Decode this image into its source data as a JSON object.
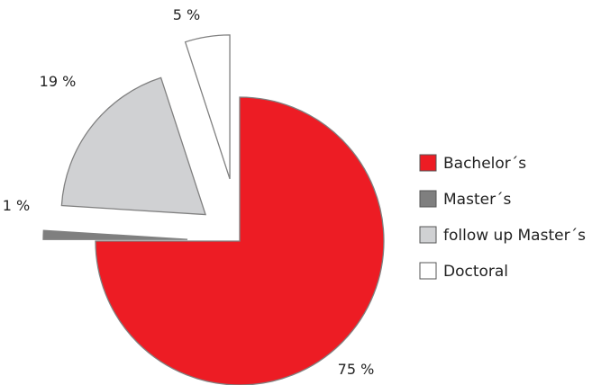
{
  "chart_data": {
    "type": "pie",
    "title": "",
    "legend_position": "right",
    "slices": [
      {
        "label": "Bachelor´s",
        "value": 75,
        "value_label": "75 %",
        "color": "#ed1c24",
        "exploded": false
      },
      {
        "label": "Master´s",
        "value": 1,
        "value_label": "1 %",
        "color": "#7f7f7f",
        "exploded": true
      },
      {
        "label": "follow up Master´s",
        "value": 19,
        "value_label": "19 %",
        "color": "#d0d1d3",
        "exploded": true
      },
      {
        "label": "Doctoral",
        "value": 5,
        "value_label": "5 %",
        "color": "#ffffff",
        "exploded": true
      }
    ]
  }
}
